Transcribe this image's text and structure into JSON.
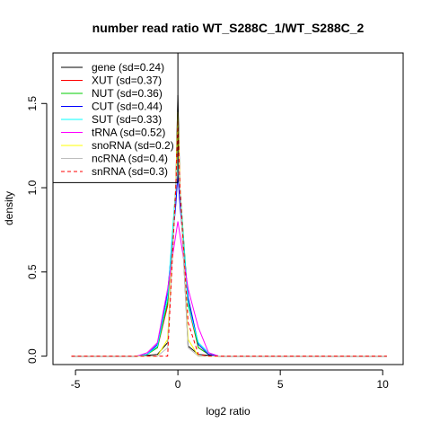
{
  "chart_data": {
    "type": "line",
    "title": "number read ratio WT_S288C_1/WT_S288C_2",
    "xlabel": "log2 ratio",
    "ylabel": "density",
    "xlim": [
      -6.1,
      11.0
    ],
    "ylim": [
      -0.05,
      1.8
    ],
    "xticks": [
      -5,
      0,
      5,
      10
    ],
    "xtick_labels": [
      "-5",
      "0",
      "5",
      "10"
    ],
    "yticks": [
      0.0,
      0.5,
      1.0,
      1.5
    ],
    "ytick_labels": [
      "0.0",
      "0.5",
      "1.0",
      "1.5"
    ],
    "vline_x": 0,
    "hline_y": 1.03,
    "grid": false,
    "legend_position": "top-left",
    "series": [
      {
        "name": "gene (sd=0.24)",
        "color": "#000000",
        "dash": "solid",
        "x": [
          -5.2,
          -2.0,
          -1.5,
          -1.0,
          -0.5,
          -0.1,
          0.0,
          0.1,
          0.5,
          1.0,
          1.5,
          2.0,
          10.2
        ],
        "y": [
          0,
          0,
          0.005,
          0.01,
          0.08,
          1.0,
          1.55,
          1.0,
          0.06,
          0.01,
          0.005,
          0,
          0
        ]
      },
      {
        "name": "XUT (sd=0.37)",
        "color": "#ff0000",
        "dash": "solid",
        "x": [
          -5.2,
          -2.0,
          -1.5,
          -1.0,
          -0.5,
          -0.1,
          0.0,
          0.1,
          0.5,
          1.0,
          1.5,
          2.0,
          10.2
        ],
        "y": [
          0,
          0,
          0.01,
          0.05,
          0.3,
          1.0,
          1.38,
          1.0,
          0.3,
          0.05,
          0.01,
          0,
          0
        ]
      },
      {
        "name": "NUT (sd=0.36)",
        "color": "#00cd00",
        "dash": "solid",
        "x": [
          -5.2,
          -2.0,
          -1.5,
          -1.0,
          -0.5,
          -0.1,
          0.0,
          0.1,
          0.5,
          1.0,
          1.5,
          2.0,
          10.2
        ],
        "y": [
          0,
          0,
          0.01,
          0.05,
          0.32,
          1.0,
          1.3,
          1.0,
          0.32,
          0.05,
          0.01,
          0,
          0
        ]
      },
      {
        "name": "CUT (sd=0.44)",
        "color": "#0000ff",
        "dash": "solid",
        "x": [
          -5.2,
          -2.0,
          -1.5,
          -1.0,
          -0.5,
          -0.1,
          0.0,
          0.1,
          0.5,
          1.0,
          1.5,
          2.0,
          10.2
        ],
        "y": [
          0,
          0,
          0.01,
          0.07,
          0.38,
          0.9,
          1.08,
          0.9,
          0.35,
          0.07,
          0.01,
          0,
          0
        ]
      },
      {
        "name": "SUT (sd=0.33)",
        "color": "#00ffff",
        "dash": "solid",
        "x": [
          -5.2,
          -2.0,
          -1.5,
          -1.0,
          -0.5,
          -0.1,
          0.0,
          0.1,
          0.5,
          1.0,
          1.5,
          2.0,
          10.2
        ],
        "y": [
          0,
          0,
          0.01,
          0.06,
          0.35,
          1.0,
          1.2,
          1.0,
          0.3,
          0.08,
          0.02,
          0,
          0
        ]
      },
      {
        "name": "tRNA (sd=0.52)",
        "color": "#ff00ff",
        "dash": "solid",
        "x": [
          -5.2,
          -2.0,
          -1.5,
          -1.0,
          -0.5,
          -0.1,
          0.0,
          0.1,
          0.5,
          1.0,
          1.5,
          2.0,
          10.2
        ],
        "y": [
          0,
          0,
          0.02,
          0.08,
          0.4,
          0.72,
          0.8,
          0.72,
          0.4,
          0.17,
          0.02,
          0,
          0
        ]
      },
      {
        "name": "snoRNA (sd=0.2)",
        "color": "#ffff00",
        "dash": "solid",
        "x": [
          -5.2,
          -2.0,
          -1.5,
          -1.0,
          -0.5,
          -0.1,
          0.0,
          0.1,
          0.5,
          1.0,
          1.5,
          2.0,
          10.2
        ],
        "y": [
          0,
          0,
          0,
          0,
          0.1,
          1.0,
          1.45,
          1.0,
          0.1,
          0,
          0,
          0,
          0
        ]
      },
      {
        "name": "ncRNA (sd=0.4)",
        "color": "#bebebe",
        "dash": "solid",
        "x": [
          -5.2,
          -2.0,
          -1.5,
          -1.0,
          -0.5,
          -0.1,
          0.0,
          0.1,
          0.5,
          1.0,
          1.5,
          2.0,
          10.2
        ],
        "y": [
          0,
          0,
          0,
          0,
          0.05,
          1.0,
          1.25,
          1.0,
          0.05,
          0,
          0,
          0,
          0
        ]
      },
      {
        "name": "snRNA (sd=0.3)",
        "color": "#ff0000",
        "dash": "dashed",
        "x": [
          -5.2,
          -2.0,
          -1.5,
          -1.0,
          -0.5,
          -0.1,
          0.0,
          0.1,
          0.5,
          1.0,
          1.5,
          2.0,
          10.2
        ],
        "y": [
          0,
          0,
          0,
          0,
          0,
          1.0,
          1.4,
          1.0,
          0.2,
          0.01,
          0,
          0,
          0
        ]
      }
    ]
  }
}
